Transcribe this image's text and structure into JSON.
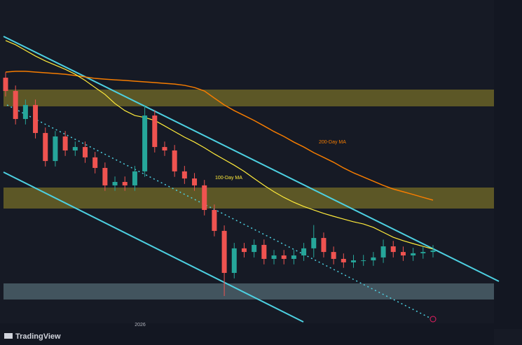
{
  "chart_data": {
    "type": "candlestick",
    "ylim": [
      1.0,
      2.777
    ],
    "up_color": "#26a69a",
    "down_color": "#ef5350",
    "open": [
      2.35,
      2.277,
      2.123,
      2.2,
      2.046,
      1.892,
      2.027,
      1.95,
      1.969,
      1.912,
      1.854,
      1.758,
      1.777,
      1.758,
      1.835,
      2.142,
      1.969,
      1.95,
      1.835,
      1.796,
      1.758,
      1.623,
      1.508,
      1.277,
      1.412,
      1.392,
      1.431,
      1.354,
      1.373,
      1.354,
      1.373,
      1.412,
      1.469,
      1.392,
      1.354,
      1.335,
      1.346,
      1.346,
      1.362,
      1.423,
      1.392,
      1.373,
      1.385,
      1.392
    ],
    "high": [
      2.38,
      2.307,
      2.23,
      2.23,
      2.076,
      2.057,
      2.057,
      1.999,
      1.999,
      1.942,
      1.884,
      1.807,
      1.807,
      1.865,
      2.2,
      2.172,
      1.999,
      1.98,
      1.865,
      1.826,
      1.788,
      1.653,
      1.538,
      1.442,
      1.442,
      1.461,
      1.461,
      1.403,
      1.403,
      1.403,
      1.442,
      1.54,
      1.499,
      1.422,
      1.384,
      1.376,
      1.376,
      1.392,
      1.46,
      1.453,
      1.422,
      1.415,
      1.422,
      1.43
    ],
    "low": [
      2.247,
      2.093,
      2.093,
      2.016,
      1.862,
      1.862,
      1.92,
      1.92,
      1.882,
      1.824,
      1.728,
      1.728,
      1.728,
      1.728,
      1.805,
      1.939,
      1.92,
      1.805,
      1.766,
      1.728,
      1.593,
      1.478,
      1.15,
      1.247,
      1.362,
      1.362,
      1.324,
      1.324,
      1.324,
      1.324,
      1.343,
      1.362,
      1.362,
      1.324,
      1.305,
      1.305,
      1.316,
      1.316,
      1.332,
      1.362,
      1.343,
      1.343,
      1.355,
      1.362
    ],
    "close": [
      2.277,
      2.123,
      2.2,
      2.046,
      1.892,
      2.027,
      1.95,
      1.969,
      1.912,
      1.854,
      1.758,
      1.777,
      1.758,
      1.835,
      2.142,
      1.969,
      1.95,
      1.835,
      1.796,
      1.758,
      1.623,
      1.508,
      1.277,
      1.412,
      1.392,
      1.431,
      1.354,
      1.373,
      1.354,
      1.373,
      1.412,
      1.469,
      1.392,
      1.354,
      1.335,
      1.346,
      1.346,
      1.362,
      1.423,
      1.392,
      1.373,
      1.385,
      1.392,
      1.4
    ],
    "series": [
      {
        "name": "200-Day MA",
        "color": "#f57c00",
        "values": [
          2.381,
          2.385,
          2.385,
          2.381,
          2.377,
          2.373,
          2.369,
          2.362,
          2.354,
          2.346,
          2.342,
          2.338,
          2.335,
          2.331,
          2.327,
          2.323,
          2.319,
          2.315,
          2.308,
          2.296,
          2.277,
          2.238,
          2.2,
          2.169,
          2.142,
          2.115,
          2.085,
          2.054,
          2.027,
          1.996,
          1.969,
          1.938,
          1.912,
          1.885,
          1.854,
          1.827,
          1.804,
          1.781,
          1.758,
          1.738,
          1.723,
          1.708,
          1.692,
          1.677
        ]
      },
      {
        "name": "100-Day MA",
        "color": "#ffeb3b",
        "values": [
          2.554,
          2.531,
          2.5,
          2.469,
          2.442,
          2.419,
          2.396,
          2.369,
          2.335,
          2.296,
          2.258,
          2.208,
          2.169,
          2.142,
          2.131,
          2.115,
          2.085,
          2.054,
          2.023,
          1.996,
          1.965,
          1.931,
          1.9,
          1.869,
          1.835,
          1.796,
          1.758,
          1.723,
          1.692,
          1.665,
          1.642,
          1.623,
          1.604,
          1.588,
          1.573,
          1.558,
          1.546,
          1.527,
          1.5,
          1.473,
          1.454,
          1.438,
          1.423,
          1.408
        ]
      }
    ],
    "annotations": [
      "2026"
    ]
  },
  "brand": "TradingView"
}
